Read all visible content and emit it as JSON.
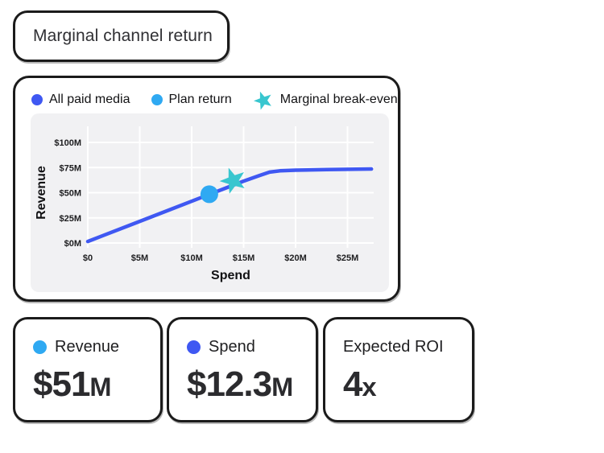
{
  "header": {
    "title": "Marginal channel return"
  },
  "colors": {
    "all_paid_media_blue": "#3F58F2",
    "plan_return_light_blue": "#2FA9F2",
    "break_even_teal": "#38C6CF",
    "panel_background": "#F1F1F3",
    "grid_line": "#FFFFFF",
    "value_text": "#2B2B2E"
  },
  "chart_card": {
    "legend": [
      {
        "label": "All paid media",
        "marker": "dot",
        "color": "#3F58F2"
      },
      {
        "label": "Plan return",
        "marker": "dot",
        "color": "#2FA9F2"
      },
      {
        "label": "Marginal break-even",
        "marker": "star",
        "color": "#38C6CF"
      }
    ]
  },
  "chart_data": {
    "type": "line",
    "title": "Marginal channel return",
    "xlabel": "Spend",
    "ylabel": "Revenue",
    "x_ticks": [
      "$0",
      "$5M",
      "$10M",
      "$15M",
      "$20M",
      "$25M"
    ],
    "x_tick_values": [
      0,
      5,
      10,
      15,
      20,
      25
    ],
    "y_ticks": [
      "$0M",
      "$25M",
      "$50M",
      "$75M",
      "$100M"
    ],
    "y_tick_values": [
      0,
      25,
      50,
      75,
      100
    ],
    "xlim": [
      0,
      27.5
    ],
    "ylim": [
      0,
      112
    ],
    "grid": true,
    "legend_position": "top",
    "series": [
      {
        "name": "All paid media",
        "type": "line",
        "color": "#3F58F2",
        "points": [
          [
            0,
            1.5
          ],
          [
            4,
            17.5
          ],
          [
            8,
            33.5
          ],
          [
            12,
            49.5
          ],
          [
            15,
            61.5
          ],
          [
            16.5,
            67
          ],
          [
            17.5,
            70.5
          ],
          [
            18.5,
            71.8
          ],
          [
            20,
            72.4
          ],
          [
            23,
            73
          ],
          [
            27.3,
            73.6
          ]
        ]
      },
      {
        "name": "Plan return",
        "type": "point",
        "marker": "dot",
        "color": "#2FA9F2",
        "x": 11.7,
        "y": 48.5
      },
      {
        "name": "Marginal break-even",
        "type": "point",
        "marker": "star",
        "color": "#38C6CF",
        "x": 14,
        "y": 62
      }
    ]
  },
  "stats": [
    {
      "label": "Revenue",
      "value": "$51",
      "suffix": "M",
      "marker": "dot",
      "marker_color": "#2FA9F2"
    },
    {
      "label": "Spend",
      "value": "$12.3",
      "suffix": "M",
      "marker": "dot",
      "marker_color": "#3F58F2"
    },
    {
      "label": "Expected ROI",
      "value": "4",
      "suffix": "x",
      "marker": "none",
      "marker_color": ""
    }
  ]
}
